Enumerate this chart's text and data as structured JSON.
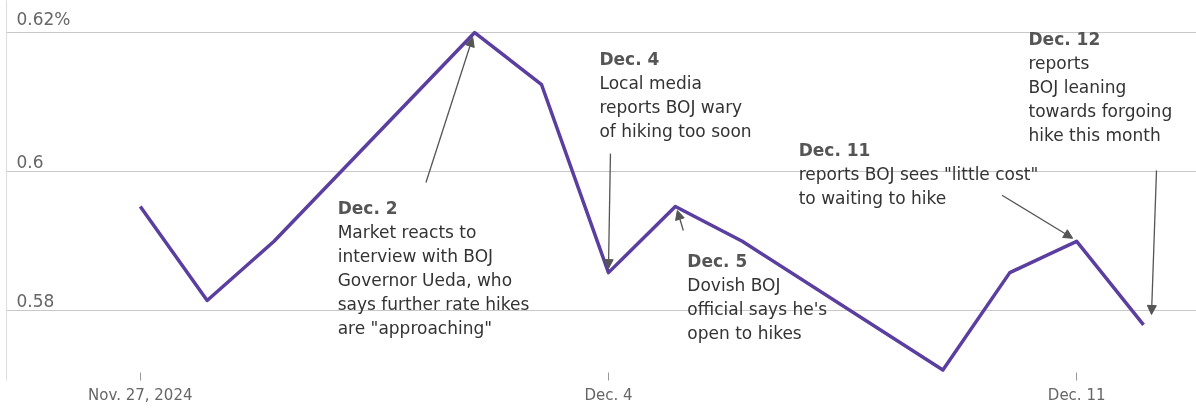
{
  "chart_data": {
    "type": "line",
    "x": [
      "2024-11-27",
      "2024-11-28",
      "2024-11-29",
      "2024-12-02",
      "2024-12-03",
      "2024-12-04",
      "2024-12-05",
      "2024-12-06",
      "2024-12-09",
      "2024-12-10",
      "2024-12-11",
      "2024-12-12"
    ],
    "series": [
      {
        "color": "#5b3fa0",
        "values": [
          0.595,
          0.5815,
          0.59,
          0.62,
          0.6125,
          0.5855,
          0.595,
          0.59,
          0.5715,
          0.5855,
          0.59,
          0.578
        ]
      }
    ],
    "xlim": [
      "2024-11-25",
      "2024-12-12T19:00"
    ],
    "xticks": [
      {
        "value": "2024-11-27",
        "label": "Nov. 27, 2024"
      },
      {
        "value": "2024-12-04",
        "label": "Dec. 4"
      },
      {
        "value": "2024-12-11",
        "label": "Dec. 11"
      }
    ],
    "ylim": [
      0.57,
      0.6246
    ],
    "yticks": [
      {
        "value": 0.58,
        "label": "0.58"
      },
      {
        "value": 0.6,
        "label": "0.6"
      },
      {
        "value": 0.62,
        "label": "0.62%"
      }
    ],
    "grid": "y",
    "marker": "none",
    "line_style": "solid",
    "annotations": [
      {
        "text": "Dec. 2\nMarket reacts to\ninterview with BOJ\nGovernor Ueda, who\nsays further rate hikes\nare \"approaching\"",
        "x": "2024-12-02",
        "y": 0.62
      },
      {
        "text": "Dec. 4\nLocal media\nreports BOJ wary\nof hiking too soon",
        "x": "2024-12-04",
        "y": 0.5855
      },
      {
        "text": "Dec. 5\nDovish BOJ\nofficial says he's\nopen to hikes",
        "x": "2024-12-05",
        "y": 0.595
      },
      {
        "text": "Dec. 11\nreports BOJ sees \"little cost\"\nto waiting to hike",
        "x": "2024-12-11",
        "y": 0.59
      },
      "Dec. 12\nreports\nBOJ leaning\ntowards forgoing\nhike this month"
    ]
  }
}
